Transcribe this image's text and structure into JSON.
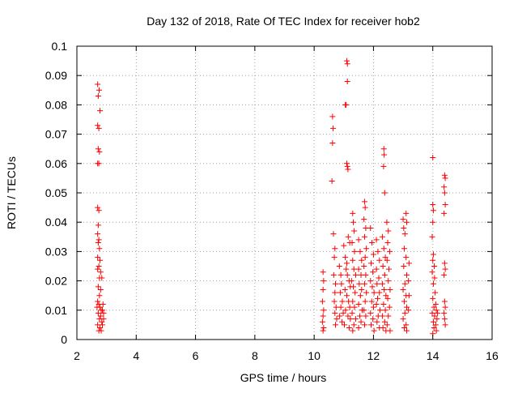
{
  "chart_data": {
    "type": "scatter",
    "title": "Day 132 of 2018, Rate Of TEC Index for receiver hob2",
    "xlabel": "GPS time / hours",
    "ylabel": "ROTI / TECUs",
    "xlim": [
      2,
      16
    ],
    "ylim": [
      0,
      0.1
    ],
    "x_ticks": [
      2,
      4,
      6,
      8,
      10,
      12,
      14,
      16
    ],
    "x_tick_labels": [
      "2",
      "4",
      "6",
      "8",
      "10",
      "12",
      "14",
      "16"
    ],
    "y_ticks": [
      0,
      0.01,
      0.02,
      0.03,
      0.04,
      0.05,
      0.06,
      0.07,
      0.08,
      0.09,
      0.1
    ],
    "y_tick_labels": [
      "0",
      "0.01",
      "0.02",
      "0.03",
      "0.04",
      "0.05",
      "0.06",
      "0.07",
      "0.08",
      "0.09",
      "0.1"
    ],
    "grid": true,
    "marker": "+",
    "series": [
      {
        "color": "#ff0000",
        "points": [
          [
            2.7,
            0.087
          ],
          [
            2.75,
            0.085
          ],
          [
            2.72,
            0.083
          ],
          [
            2.78,
            0.078
          ],
          [
            2.7,
            0.073
          ],
          [
            2.74,
            0.072
          ],
          [
            2.72,
            0.065
          ],
          [
            2.76,
            0.064
          ],
          [
            2.7,
            0.06
          ],
          [
            2.74,
            0.06
          ],
          [
            2.7,
            0.045
          ],
          [
            2.74,
            0.044
          ],
          [
            2.72,
            0.039
          ],
          [
            2.7,
            0.036
          ],
          [
            2.74,
            0.034
          ],
          [
            2.72,
            0.033
          ],
          [
            2.76,
            0.031
          ],
          [
            2.7,
            0.028
          ],
          [
            2.78,
            0.027
          ],
          [
            2.74,
            0.025
          ],
          [
            2.7,
            0.024
          ],
          [
            2.8,
            0.023
          ],
          [
            2.76,
            0.021
          ],
          [
            2.84,
            0.021
          ],
          [
            2.72,
            0.018
          ],
          [
            2.8,
            0.017
          ],
          [
            2.76,
            0.015
          ],
          [
            2.7,
            0.013
          ],
          [
            2.74,
            0.012
          ],
          [
            2.78,
            0.011
          ],
          [
            2.82,
            0.01
          ],
          [
            2.86,
            0.01
          ],
          [
            2.72,
            0.009
          ],
          [
            2.8,
            0.008
          ],
          [
            2.76,
            0.007
          ],
          [
            2.84,
            0.006
          ],
          [
            2.7,
            0.005
          ],
          [
            2.78,
            0.004
          ],
          [
            2.74,
            0.003
          ],
          [
            2.82,
            0.003
          ],
          [
            2.88,
            0.012
          ],
          [
            2.9,
            0.007
          ],
          [
            2.86,
            0.005
          ],
          [
            2.9,
            0.009
          ],
          [
            2.68,
            0.011
          ],
          [
            10.3,
            0.023
          ],
          [
            10.32,
            0.02
          ],
          [
            10.3,
            0.017
          ],
          [
            10.28,
            0.013
          ],
          [
            10.32,
            0.01
          ],
          [
            10.3,
            0.008
          ],
          [
            10.28,
            0.006
          ],
          [
            10.32,
            0.004
          ],
          [
            10.3,
            0.003
          ],
          [
            10.6,
            0.054
          ],
          [
            10.62,
            0.067
          ],
          [
            10.64,
            0.072
          ],
          [
            10.62,
            0.076
          ],
          [
            10.65,
            0.036
          ],
          [
            10.7,
            0.031
          ],
          [
            10.68,
            0.028
          ],
          [
            10.66,
            0.022
          ],
          [
            10.72,
            0.019
          ],
          [
            10.7,
            0.016
          ],
          [
            10.68,
            0.013
          ],
          [
            10.74,
            0.011
          ],
          [
            10.7,
            0.009
          ],
          [
            10.76,
            0.007
          ],
          [
            10.72,
            0.005
          ],
          [
            10.85,
            0.025
          ],
          [
            10.9,
            0.022
          ],
          [
            10.92,
            0.019
          ],
          [
            10.88,
            0.016
          ],
          [
            10.95,
            0.013
          ],
          [
            10.9,
            0.011
          ],
          [
            10.98,
            0.009
          ],
          [
            10.86,
            0.008
          ],
          [
            10.94,
            0.006
          ],
          [
            11.05,
            0.08
          ],
          [
            11.08,
            0.08
          ],
          [
            11.1,
            0.095
          ],
          [
            11.12,
            0.094
          ],
          [
            11.12,
            0.088
          ],
          [
            11.12,
            0.059
          ],
          [
            11.14,
            0.058
          ],
          [
            11.1,
            0.06
          ],
          [
            11.0,
            0.032
          ],
          [
            11.05,
            0.028
          ],
          [
            11.1,
            0.026
          ],
          [
            11.15,
            0.035
          ],
          [
            11.2,
            0.033
          ],
          [
            11.08,
            0.024
          ],
          [
            11.12,
            0.022
          ],
          [
            11.18,
            0.02
          ],
          [
            11.22,
            0.018
          ],
          [
            11.04,
            0.017
          ],
          [
            11.1,
            0.015
          ],
          [
            11.16,
            0.013
          ],
          [
            11.2,
            0.011
          ],
          [
            11.06,
            0.01
          ],
          [
            11.14,
            0.008
          ],
          [
            11.22,
            0.007
          ],
          [
            11.02,
            0.005
          ],
          [
            11.18,
            0.004
          ],
          [
            11.3,
            0.043
          ],
          [
            11.32,
            0.04
          ],
          [
            11.35,
            0.037
          ],
          [
            11.28,
            0.033
          ],
          [
            11.36,
            0.03
          ],
          [
            11.3,
            0.027
          ],
          [
            11.34,
            0.024
          ],
          [
            11.4,
            0.022
          ],
          [
            11.26,
            0.02
          ],
          [
            11.32,
            0.018
          ],
          [
            11.38,
            0.016
          ],
          [
            11.3,
            0.013
          ],
          [
            11.36,
            0.011
          ],
          [
            11.28,
            0.009
          ],
          [
            11.4,
            0.007
          ],
          [
            11.34,
            0.005
          ],
          [
            11.3,
            0.003
          ],
          [
            11.5,
            0.034
          ],
          [
            11.55,
            0.03
          ],
          [
            11.6,
            0.027
          ],
          [
            11.5,
            0.024
          ],
          [
            11.58,
            0.022
          ],
          [
            11.52,
            0.019
          ],
          [
            11.6,
            0.017
          ],
          [
            11.56,
            0.015
          ],
          [
            11.5,
            0.012
          ],
          [
            11.62,
            0.01
          ],
          [
            11.54,
            0.008
          ],
          [
            11.58,
            0.006
          ],
          [
            11.5,
            0.004
          ],
          [
            11.7,
            0.047
          ],
          [
            11.72,
            0.045
          ],
          [
            11.68,
            0.041
          ],
          [
            11.74,
            0.038
          ],
          [
            11.7,
            0.035
          ],
          [
            11.76,
            0.031
          ],
          [
            11.72,
            0.028
          ],
          [
            11.68,
            0.025
          ],
          [
            11.74,
            0.022
          ],
          [
            11.7,
            0.019
          ],
          [
            11.76,
            0.016
          ],
          [
            11.72,
            0.013
          ],
          [
            11.68,
            0.01
          ],
          [
            11.74,
            0.008
          ],
          [
            11.7,
            0.005
          ],
          [
            11.9,
            0.038
          ],
          [
            11.95,
            0.033
          ],
          [
            12.0,
            0.029
          ],
          [
            11.92,
            0.026
          ],
          [
            11.98,
            0.023
          ],
          [
            11.9,
            0.02
          ],
          [
            11.96,
            0.018
          ],
          [
            12.02,
            0.016
          ],
          [
            11.94,
            0.013
          ],
          [
            12.0,
            0.011
          ],
          [
            11.9,
            0.009
          ],
          [
            11.98,
            0.007
          ],
          [
            11.92,
            0.005
          ],
          [
            12.02,
            0.003
          ],
          [
            12.1,
            0.034
          ],
          [
            12.15,
            0.03
          ],
          [
            12.2,
            0.027
          ],
          [
            12.1,
            0.024
          ],
          [
            12.18,
            0.021
          ],
          [
            12.12,
            0.019
          ],
          [
            12.2,
            0.016
          ],
          [
            12.14,
            0.014
          ],
          [
            12.1,
            0.012
          ],
          [
            12.22,
            0.01
          ],
          [
            12.16,
            0.008
          ],
          [
            12.12,
            0.006
          ],
          [
            12.2,
            0.004
          ],
          [
            12.35,
            0.065
          ],
          [
            12.36,
            0.063
          ],
          [
            12.34,
            0.059
          ],
          [
            12.38,
            0.05
          ],
          [
            12.3,
            0.035
          ],
          [
            12.35,
            0.031
          ],
          [
            12.4,
            0.028
          ],
          [
            12.32,
            0.025
          ],
          [
            12.38,
            0.022
          ],
          [
            12.3,
            0.019
          ],
          [
            12.36,
            0.017
          ],
          [
            12.42,
            0.015
          ],
          [
            12.34,
            0.012
          ],
          [
            12.4,
            0.01
          ],
          [
            12.3,
            0.008
          ],
          [
            12.38,
            0.006
          ],
          [
            12.32,
            0.004
          ],
          [
            12.42,
            0.003
          ],
          [
            12.45,
            0.04
          ],
          [
            12.5,
            0.037
          ],
          [
            12.48,
            0.033
          ],
          [
            12.55,
            0.03
          ],
          [
            12.46,
            0.027
          ],
          [
            12.52,
            0.024
          ],
          [
            12.5,
            0.02
          ],
          [
            12.56,
            0.017
          ],
          [
            12.48,
            0.014
          ],
          [
            12.54,
            0.011
          ],
          [
            12.5,
            0.008
          ],
          [
            12.46,
            0.005
          ],
          [
            12.56,
            0.003
          ],
          [
            13.0,
            0.041
          ],
          [
            13.02,
            0.038
          ],
          [
            13.1,
            0.043
          ],
          [
            13.12,
            0.04
          ],
          [
            13.06,
            0.036
          ],
          [
            13.04,
            0.031
          ],
          [
            13.1,
            0.028
          ],
          [
            13.02,
            0.025
          ],
          [
            13.12,
            0.022
          ],
          [
            13.06,
            0.019
          ],
          [
            13.0,
            0.017
          ],
          [
            13.1,
            0.015
          ],
          [
            13.04,
            0.013
          ],
          [
            13.12,
            0.011
          ],
          [
            13.06,
            0.009
          ],
          [
            13.0,
            0.007
          ],
          [
            13.1,
            0.005
          ],
          [
            13.04,
            0.004
          ],
          [
            13.12,
            0.003
          ],
          [
            13.2,
            0.026
          ],
          [
            13.18,
            0.02
          ],
          [
            13.2,
            0.015
          ],
          [
            13.18,
            0.01
          ],
          [
            14.0,
            0.062
          ],
          [
            14.0,
            0.046
          ],
          [
            14.02,
            0.044
          ],
          [
            14.0,
            0.04
          ],
          [
            13.98,
            0.035
          ],
          [
            14.02,
            0.029
          ],
          [
            14.0,
            0.027
          ],
          [
            14.05,
            0.025
          ],
          [
            13.98,
            0.023
          ],
          [
            14.06,
            0.021
          ],
          [
            14.02,
            0.019
          ],
          [
            14.08,
            0.016
          ],
          [
            14.0,
            0.014
          ],
          [
            14.1,
            0.012
          ],
          [
            14.04,
            0.011
          ],
          [
            14.12,
            0.01
          ],
          [
            13.98,
            0.009
          ],
          [
            14.06,
            0.008
          ],
          [
            14.14,
            0.007
          ],
          [
            14.02,
            0.006
          ],
          [
            14.1,
            0.005
          ],
          [
            14.04,
            0.004
          ],
          [
            14.12,
            0.003
          ],
          [
            14.0,
            0.002
          ],
          [
            14.16,
            0.009
          ],
          [
            14.4,
            0.056
          ],
          [
            14.42,
            0.055
          ],
          [
            14.38,
            0.052
          ],
          [
            14.4,
            0.05
          ],
          [
            14.42,
            0.046
          ],
          [
            14.38,
            0.043
          ],
          [
            14.4,
            0.026
          ],
          [
            14.42,
            0.024
          ],
          [
            14.38,
            0.022
          ],
          [
            14.4,
            0.013
          ],
          [
            14.42,
            0.011
          ],
          [
            14.38,
            0.009
          ],
          [
            14.4,
            0.007
          ],
          [
            14.42,
            0.005
          ]
        ]
      }
    ]
  }
}
